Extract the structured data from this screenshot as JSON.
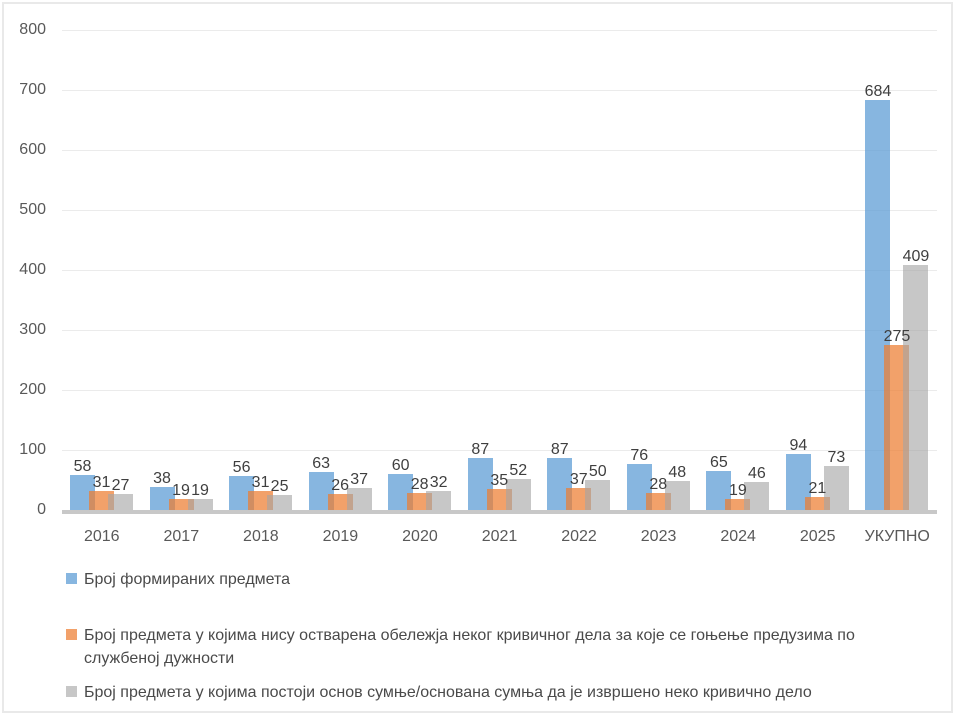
{
  "chart_data": {
    "type": "bar",
    "categories": [
      "2016",
      "2017",
      "2018",
      "2019",
      "2020",
      "2021",
      "2022",
      "2023",
      "2024",
      "2025",
      "УКУПНО"
    ],
    "series": [
      {
        "name": "Број формираних предмета",
        "values": [
          58,
          38,
          56,
          63,
          60,
          87,
          87,
          76,
          65,
          94,
          684
        ],
        "color": "#5B9BD5",
        "rgba": "rgba(91,155,213,0.73)"
      },
      {
        "name": "Број предмета у којима нису остварена обележја неког кривичног дела за које се гоњење предузима по службеној дужности",
        "values": [
          31,
          19,
          31,
          26,
          28,
          35,
          37,
          28,
          19,
          21,
          275
        ],
        "color": "#ED7D31",
        "rgba": "rgba(237,125,49,0.72)"
      },
      {
        "name": "Број предмета у којима постоји основ сумње/основана сумња да је извршено неко кривично дело",
        "values": [
          27,
          19,
          25,
          37,
          32,
          52,
          50,
          48,
          46,
          73,
          409
        ],
        "color": "#A5A5A5",
        "rgba": "rgba(165,165,165,0.62)"
      }
    ],
    "ylim": [
      0,
      800
    ],
    "ytick_step": 100,
    "yticks": [
      0,
      100,
      200,
      300,
      400,
      500,
      600,
      700,
      800
    ],
    "grid": true,
    "legend_position": "bottom-left",
    "bar_value_labels": true
  },
  "style_colors": {
    "background": "#FFFFFF",
    "frame_border": "#E9E9E9",
    "gridline": "#EBEBEB",
    "axis_line": "#C8C8C8",
    "tick_text": "#595959",
    "value_label_text": "#3F3F3F",
    "legend_text": "#4A4A4A"
  }
}
